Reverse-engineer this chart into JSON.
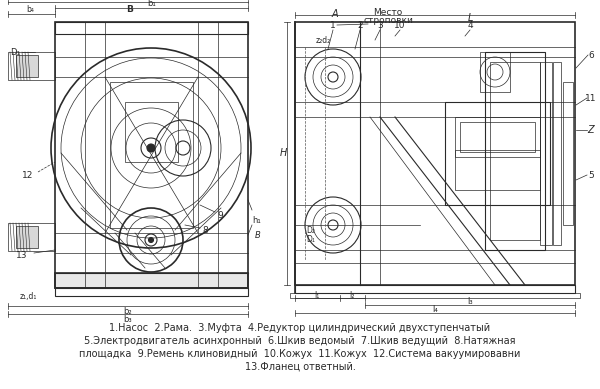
{
  "background_color": "#ffffff",
  "text_color": "#2a2a2a",
  "caption_lines": [
    "1.Насос  2.Рама.  3.Муфта  4.Редуктор цилиндрический двухступенчатый",
    "5.Электродвигатель асинхронный  6.Шкив ведомый  7.Шкив ведущий  8.Натяжная",
    "площадка  9.Ремень клиновидный  10.Кожух  11.Кожух  12.Система вакуумировавни",
    "13.Фланец ответный."
  ],
  "figsize": [
    6.0,
    3.89
  ],
  "dpi": 100,
  "lw_thin": 0.5,
  "lw_med": 0.8,
  "lw_thick": 1.2
}
